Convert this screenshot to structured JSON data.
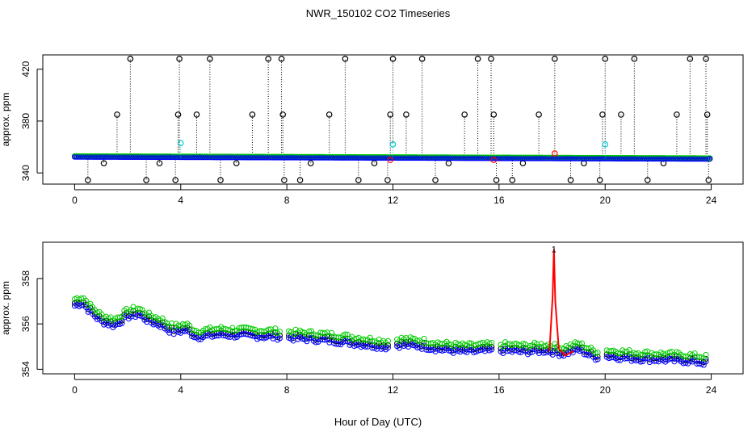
{
  "title": "NWR_150102  CO2 Timeseries",
  "xlabel": "Hour of Day (UTC)",
  "chart_data": [
    {
      "type": "scatter",
      "name": "top-panel",
      "ylabel": "approx. ppm",
      "xlim": [
        -1.2,
        25.2
      ],
      "ylim": [
        331.4,
        431.0
      ],
      "xticks": [
        0,
        4,
        8,
        12,
        16,
        20,
        24
      ],
      "yticks": [
        340,
        380,
        420
      ],
      "baseline": {
        "start": 352.4,
        "end": 350.8,
        "colors": {
          "black": "#000000",
          "green": "#00cc00",
          "blue": "#0000ff"
        }
      },
      "spikes_high": [
        1.6,
        2.1,
        3.9,
        3.95,
        4.6,
        5.1,
        6.7,
        7.3,
        7.8,
        7.85,
        9.6,
        10.2,
        11.9,
        12.0,
        12.5,
        13.1,
        14.7,
        15.2,
        15.7,
        15.8,
        17.5,
        18.1,
        19.9,
        20.0,
        20.6,
        21.1,
        22.7,
        23.2,
        23.8,
        23.85
      ],
      "spike_high_values": [
        385,
        428,
        385,
        428,
        385,
        428,
        385,
        428,
        428,
        385,
        385,
        428,
        385,
        428,
        385,
        428,
        385,
        428,
        428,
        385,
        385,
        428,
        385,
        428,
        385,
        428,
        385,
        428,
        428,
        385
      ],
      "spikes_low": [
        0.5,
        2.7,
        3.8,
        5.5,
        7.9,
        8.5,
        10.7,
        11.8,
        13.6,
        15.9,
        16.5,
        18.7,
        19.8,
        21.6,
        23.9
      ],
      "spike_low_value": 334.5,
      "small_dips": [
        1.1,
        3.2,
        6.1,
        8.9,
        11.3,
        14.1,
        16.9,
        19.2,
        22.2
      ],
      "small_dip_value": 347.5,
      "cyan_points": [
        [
          4.0,
          363
        ],
        [
          12.0,
          362
        ],
        [
          20.0,
          362
        ]
      ],
      "red_points": [
        [
          18.1,
          355
        ],
        [
          11.9,
          350
        ],
        [
          15.8,
          350
        ]
      ],
      "cyan_color": "#00cccc",
      "red_color": "#ff0000"
    },
    {
      "type": "line",
      "name": "bottom-panel",
      "ylabel": "approx. ppm",
      "xlim": [
        -1.2,
        25.2
      ],
      "ylim": [
        353.8,
        359.6
      ],
      "xticks": [
        0,
        4,
        8,
        12,
        16,
        20,
        24
      ],
      "yticks": [
        354,
        356,
        358
      ],
      "gap_ranges": [
        [
          7.8,
          8.0
        ],
        [
          11.9,
          12.1
        ],
        [
          15.8,
          16.0
        ],
        [
          19.8,
          20.0
        ]
      ],
      "series": [
        {
          "name": "black",
          "color": "#000000",
          "offset": 0.12
        },
        {
          "name": "green",
          "color": "#00cc00",
          "offset": 0.3
        },
        {
          "name": "blue",
          "color": "#0000ff",
          "offset": 0.0
        }
      ],
      "trend": [
        [
          0.0,
          356.8
        ],
        [
          0.3,
          356.9
        ],
        [
          0.6,
          356.5
        ],
        [
          1.0,
          356.1
        ],
        [
          1.5,
          355.9
        ],
        [
          2.0,
          356.3
        ],
        [
          2.4,
          356.4
        ],
        [
          2.8,
          356.1
        ],
        [
          3.3,
          355.9
        ],
        [
          3.7,
          355.6
        ],
        [
          4.2,
          355.7
        ],
        [
          4.6,
          355.4
        ],
        [
          5.5,
          355.5
        ],
        [
          6.5,
          355.45
        ],
        [
          7.7,
          355.4
        ],
        [
          8.2,
          355.35
        ],
        [
          9.0,
          355.3
        ],
        [
          10.0,
          355.2
        ],
        [
          11.0,
          355.05
        ],
        [
          11.8,
          354.95
        ],
        [
          12.2,
          355.05
        ],
        [
          13.0,
          355.0
        ],
        [
          13.8,
          354.85
        ],
        [
          14.7,
          354.75
        ],
        [
          15.7,
          354.8
        ],
        [
          16.2,
          354.8
        ],
        [
          17.0,
          354.75
        ],
        [
          17.8,
          354.8
        ],
        [
          18.4,
          354.65
        ],
        [
          19.0,
          354.85
        ],
        [
          19.6,
          354.5
        ],
        [
          20.1,
          354.55
        ],
        [
          21.0,
          354.45
        ],
        [
          22.0,
          354.4
        ],
        [
          23.0,
          354.35
        ],
        [
          23.8,
          354.25
        ]
      ],
      "red_line": [
        [
          17.9,
          354.8
        ],
        [
          18.02,
          357.2
        ],
        [
          18.07,
          359.3
        ],
        [
          18.12,
          357.0
        ],
        [
          18.25,
          354.9
        ],
        [
          18.5,
          354.6
        ],
        [
          18.8,
          354.8
        ]
      ],
      "red_color": "#ff0000",
      "red_label": "1",
      "red_label_at": [
        18.07,
        359.3
      ]
    }
  ]
}
